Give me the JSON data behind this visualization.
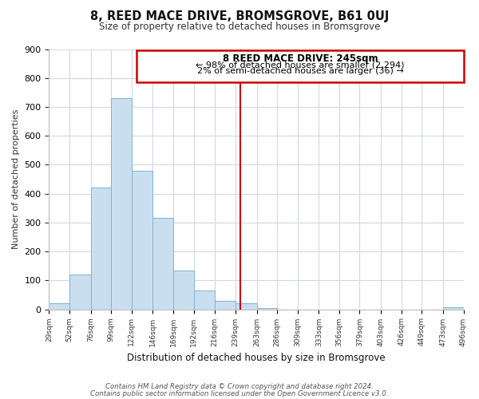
{
  "title": "8, REED MACE DRIVE, BROMSGROVE, B61 0UJ",
  "subtitle": "Size of property relative to detached houses in Bromsgrove",
  "xlabel": "Distribution of detached houses by size in Bromsgrove",
  "ylabel": "Number of detached properties",
  "bin_edges": [
    29,
    52,
    76,
    99,
    122,
    146,
    169,
    192,
    216,
    239,
    263,
    286,
    309,
    333,
    356,
    379,
    403,
    426,
    449,
    473,
    496
  ],
  "bin_counts": [
    20,
    120,
    420,
    730,
    480,
    315,
    135,
    65,
    30,
    20,
    5,
    0,
    0,
    0,
    0,
    0,
    0,
    0,
    0,
    8
  ],
  "bar_color": "#c9dff0",
  "bar_edge_color": "#7fb3d3",
  "vline_x": 245,
  "vline_color": "#cc0000",
  "annotation_title": "8 REED MACE DRIVE: 245sqm",
  "annotation_line1": "← 98% of detached houses are smaller (2,294)",
  "annotation_line2": "2% of semi-detached houses are larger (36) →",
  "annotation_box_color": "#cc0000",
  "ylim": [
    0,
    900
  ],
  "tick_labels": [
    "29sqm",
    "52sqm",
    "76sqm",
    "99sqm",
    "122sqm",
    "146sqm",
    "169sqm",
    "192sqm",
    "216sqm",
    "239sqm",
    "263sqm",
    "286sqm",
    "309sqm",
    "333sqm",
    "356sqm",
    "379sqm",
    "403sqm",
    "426sqm",
    "449sqm",
    "473sqm",
    "496sqm"
  ],
  "footnote_line1": "Contains HM Land Registry data © Crown copyright and database right 2024.",
  "footnote_line2": "Contains public sector information licensed under the Open Government Licence v3.0.",
  "bg_color": "#ffffff",
  "plot_bg_color": "#ffffff",
  "grid_color": "#d0d8e8"
}
